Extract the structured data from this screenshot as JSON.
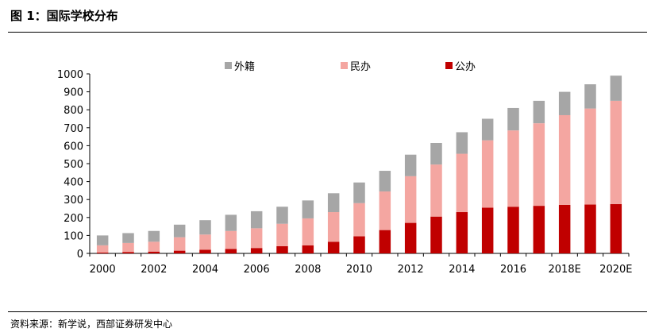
{
  "figure_title": "图 1：国际学校分布",
  "source_note": "资料来源：新学说，西部证券研发中心",
  "chart_data": {
    "type": "bar",
    "stacked": true,
    "categories": [
      "2000",
      "2001",
      "2002",
      "2003",
      "2004",
      "2005",
      "2006",
      "2007",
      "2008",
      "2009",
      "2010",
      "2011",
      "2012",
      "2013",
      "2014",
      "2015",
      "2016",
      "2017",
      "2018E",
      "2019E",
      "2020E"
    ],
    "x_tick_labels": [
      "2000",
      "2002",
      "2004",
      "2006",
      "2008",
      "2010",
      "2012",
      "2014",
      "2016",
      "2018E",
      "2020E"
    ],
    "ylim": [
      0,
      1000
    ],
    "y_ticks": [
      "0",
      "100",
      "200",
      "300",
      "400",
      "500",
      "600",
      "700",
      "800",
      "900",
      "1000"
    ],
    "legend_position": "top",
    "grid": false,
    "series": [
      {
        "name": "公办",
        "color": "#c00000",
        "values": [
          5,
          8,
          10,
          15,
          20,
          25,
          30,
          40,
          45,
          65,
          95,
          130,
          170,
          205,
          230,
          255,
          260,
          265,
          270,
          272,
          275
        ]
      },
      {
        "name": "民办",
        "color": "#f4a6a1",
        "values": [
          40,
          50,
          55,
          75,
          85,
          100,
          110,
          125,
          150,
          165,
          185,
          215,
          260,
          290,
          325,
          375,
          425,
          460,
          500,
          535,
          575
        ]
      },
      {
        "name": "外籍",
        "color": "#a6a6a6",
        "values": [
          55,
          55,
          60,
          70,
          80,
          90,
          95,
          95,
          100,
          105,
          115,
          115,
          120,
          120,
          120,
          120,
          125,
          125,
          130,
          135,
          140
        ]
      }
    ],
    "legend_order": [
      "外籍",
      "民办",
      "公办"
    ]
  }
}
